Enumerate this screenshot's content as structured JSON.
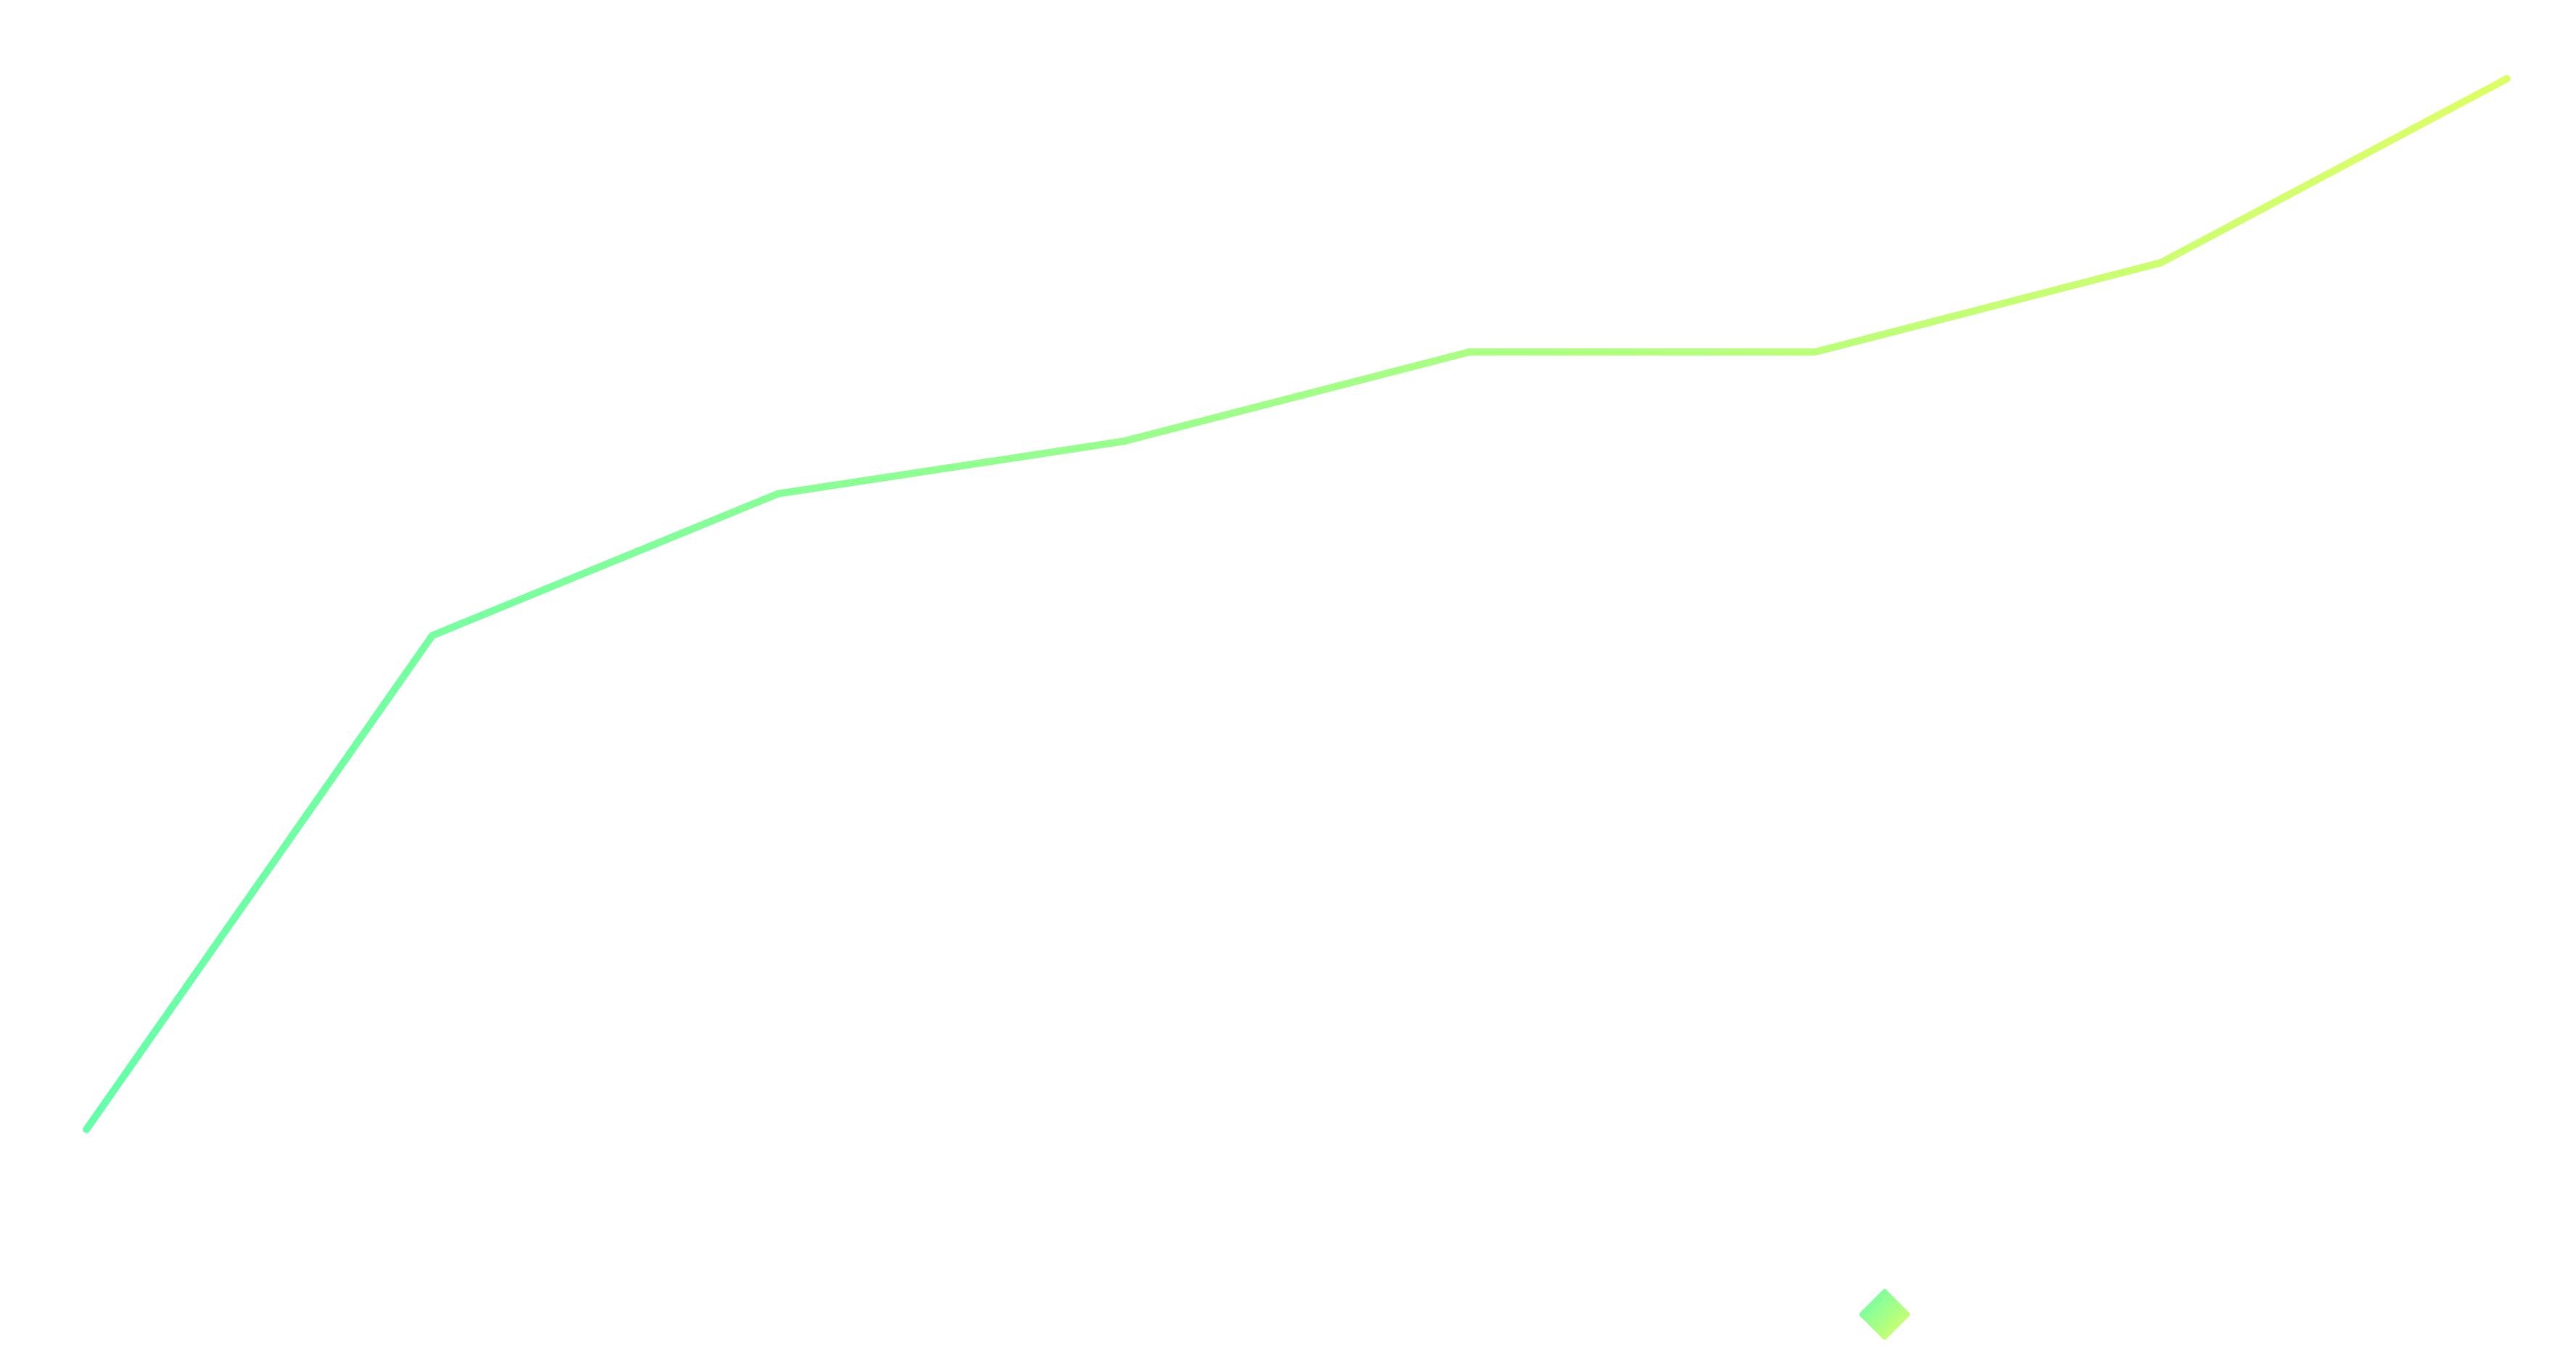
{
  "chart_data": {
    "type": "line",
    "x": [
      0,
      1,
      2,
      3,
      4,
      5,
      6,
      7
    ],
    "series": [
      {
        "values": [
          0.0,
          4.7,
          6.05,
          6.55,
          7.4,
          7.4,
          8.25,
          10.0
        ]
      }
    ],
    "ylim": [
      -2.3,
      10.75
    ],
    "xlim": [
      -0.25,
      7.2
    ],
    "grid": false,
    "colors": {
      "gradient_start": "#66FFAA",
      "gradient_end": "#DDFF66"
    },
    "legend": {
      "position": "bottom-right",
      "marker": "diamond"
    }
  }
}
